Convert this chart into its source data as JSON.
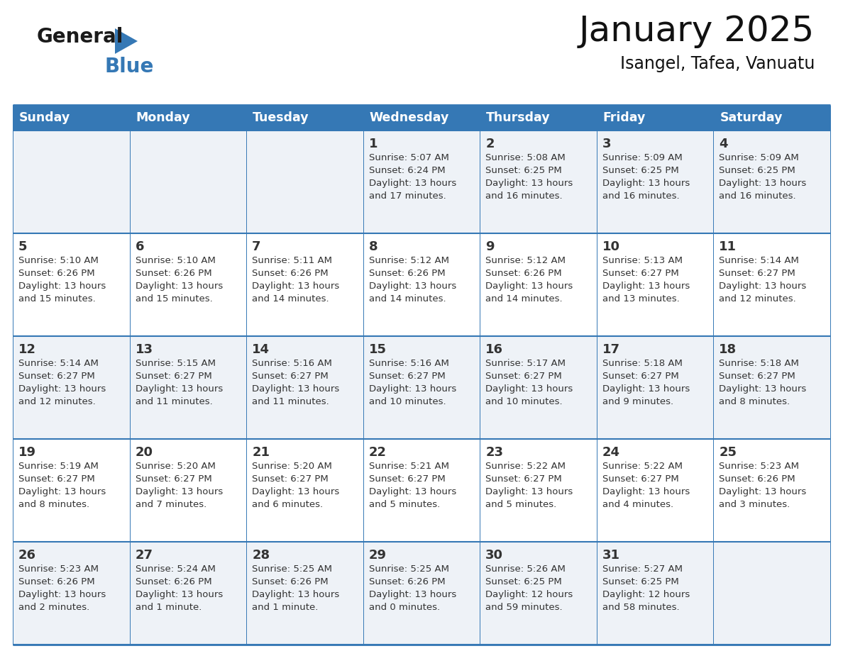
{
  "title": "January 2025",
  "subtitle": "Isangel, Tafea, Vanuatu",
  "header_bg_color": "#3578b5",
  "header_text_color": "#ffffff",
  "cell_bg_light": "#eef2f7",
  "cell_bg_white": "#ffffff",
  "border_color": "#3578b5",
  "text_color": "#333333",
  "day_number_color": "#333333",
  "day_headers": [
    "Sunday",
    "Monday",
    "Tuesday",
    "Wednesday",
    "Thursday",
    "Friday",
    "Saturday"
  ],
  "weeks": [
    [
      {
        "day": "",
        "info": ""
      },
      {
        "day": "",
        "info": ""
      },
      {
        "day": "",
        "info": ""
      },
      {
        "day": "1",
        "info": "Sunrise: 5:07 AM\nSunset: 6:24 PM\nDaylight: 13 hours\nand 17 minutes."
      },
      {
        "day": "2",
        "info": "Sunrise: 5:08 AM\nSunset: 6:25 PM\nDaylight: 13 hours\nand 16 minutes."
      },
      {
        "day": "3",
        "info": "Sunrise: 5:09 AM\nSunset: 6:25 PM\nDaylight: 13 hours\nand 16 minutes."
      },
      {
        "day": "4",
        "info": "Sunrise: 5:09 AM\nSunset: 6:25 PM\nDaylight: 13 hours\nand 16 minutes."
      }
    ],
    [
      {
        "day": "5",
        "info": "Sunrise: 5:10 AM\nSunset: 6:26 PM\nDaylight: 13 hours\nand 15 minutes."
      },
      {
        "day": "6",
        "info": "Sunrise: 5:10 AM\nSunset: 6:26 PM\nDaylight: 13 hours\nand 15 minutes."
      },
      {
        "day": "7",
        "info": "Sunrise: 5:11 AM\nSunset: 6:26 PM\nDaylight: 13 hours\nand 14 minutes."
      },
      {
        "day": "8",
        "info": "Sunrise: 5:12 AM\nSunset: 6:26 PM\nDaylight: 13 hours\nand 14 minutes."
      },
      {
        "day": "9",
        "info": "Sunrise: 5:12 AM\nSunset: 6:26 PM\nDaylight: 13 hours\nand 14 minutes."
      },
      {
        "day": "10",
        "info": "Sunrise: 5:13 AM\nSunset: 6:27 PM\nDaylight: 13 hours\nand 13 minutes."
      },
      {
        "day": "11",
        "info": "Sunrise: 5:14 AM\nSunset: 6:27 PM\nDaylight: 13 hours\nand 12 minutes."
      }
    ],
    [
      {
        "day": "12",
        "info": "Sunrise: 5:14 AM\nSunset: 6:27 PM\nDaylight: 13 hours\nand 12 minutes."
      },
      {
        "day": "13",
        "info": "Sunrise: 5:15 AM\nSunset: 6:27 PM\nDaylight: 13 hours\nand 11 minutes."
      },
      {
        "day": "14",
        "info": "Sunrise: 5:16 AM\nSunset: 6:27 PM\nDaylight: 13 hours\nand 11 minutes."
      },
      {
        "day": "15",
        "info": "Sunrise: 5:16 AM\nSunset: 6:27 PM\nDaylight: 13 hours\nand 10 minutes."
      },
      {
        "day": "16",
        "info": "Sunrise: 5:17 AM\nSunset: 6:27 PM\nDaylight: 13 hours\nand 10 minutes."
      },
      {
        "day": "17",
        "info": "Sunrise: 5:18 AM\nSunset: 6:27 PM\nDaylight: 13 hours\nand 9 minutes."
      },
      {
        "day": "18",
        "info": "Sunrise: 5:18 AM\nSunset: 6:27 PM\nDaylight: 13 hours\nand 8 minutes."
      }
    ],
    [
      {
        "day": "19",
        "info": "Sunrise: 5:19 AM\nSunset: 6:27 PM\nDaylight: 13 hours\nand 8 minutes."
      },
      {
        "day": "20",
        "info": "Sunrise: 5:20 AM\nSunset: 6:27 PM\nDaylight: 13 hours\nand 7 minutes."
      },
      {
        "day": "21",
        "info": "Sunrise: 5:20 AM\nSunset: 6:27 PM\nDaylight: 13 hours\nand 6 minutes."
      },
      {
        "day": "22",
        "info": "Sunrise: 5:21 AM\nSunset: 6:27 PM\nDaylight: 13 hours\nand 5 minutes."
      },
      {
        "day": "23",
        "info": "Sunrise: 5:22 AM\nSunset: 6:27 PM\nDaylight: 13 hours\nand 5 minutes."
      },
      {
        "day": "24",
        "info": "Sunrise: 5:22 AM\nSunset: 6:27 PM\nDaylight: 13 hours\nand 4 minutes."
      },
      {
        "day": "25",
        "info": "Sunrise: 5:23 AM\nSunset: 6:26 PM\nDaylight: 13 hours\nand 3 minutes."
      }
    ],
    [
      {
        "day": "26",
        "info": "Sunrise: 5:23 AM\nSunset: 6:26 PM\nDaylight: 13 hours\nand 2 minutes."
      },
      {
        "day": "27",
        "info": "Sunrise: 5:24 AM\nSunset: 6:26 PM\nDaylight: 13 hours\nand 1 minute."
      },
      {
        "day": "28",
        "info": "Sunrise: 5:25 AM\nSunset: 6:26 PM\nDaylight: 13 hours\nand 1 minute."
      },
      {
        "day": "29",
        "info": "Sunrise: 5:25 AM\nSunset: 6:26 PM\nDaylight: 13 hours\nand 0 minutes."
      },
      {
        "day": "30",
        "info": "Sunrise: 5:26 AM\nSunset: 6:25 PM\nDaylight: 12 hours\nand 59 minutes."
      },
      {
        "day": "31",
        "info": "Sunrise: 5:27 AM\nSunset: 6:25 PM\nDaylight: 12 hours\nand 58 minutes."
      },
      {
        "day": "",
        "info": ""
      }
    ]
  ],
  "logo_color_general": "#1a1a1a",
  "logo_color_blue": "#3578b5",
  "logo_triangle_color": "#3578b5"
}
